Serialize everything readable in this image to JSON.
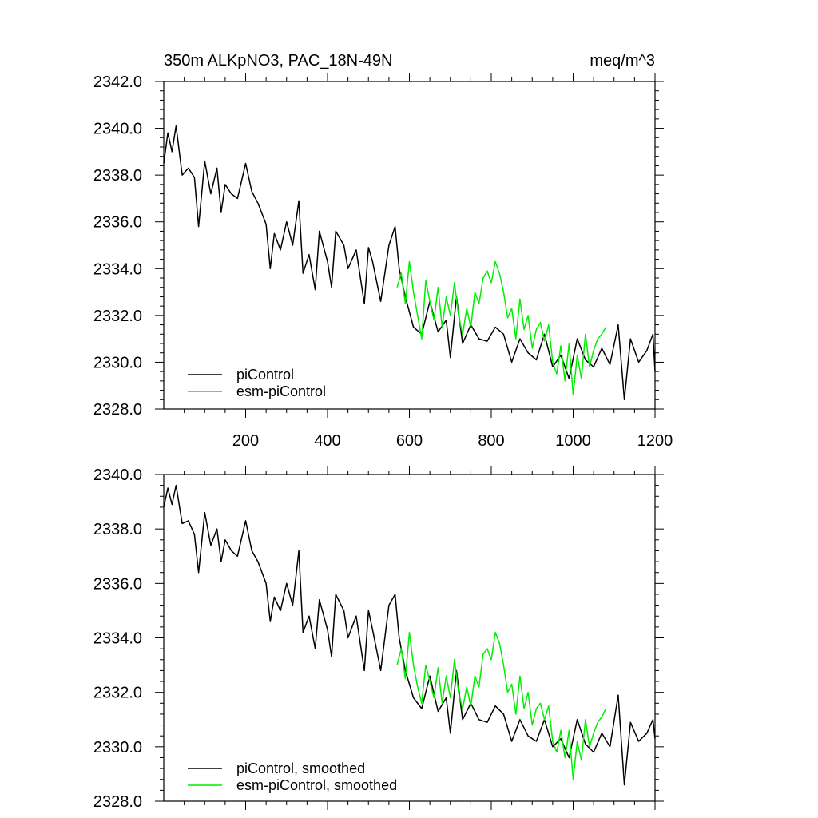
{
  "colors": {
    "piControl": "#000000",
    "esm": "#00ee00",
    "axis": "#000000"
  },
  "panel_top": {
    "title_left": "350m ALKpNO3, PAC_18N-49N",
    "title_right": "meq/m^3",
    "legend": [
      "piControl",
      "esm-piControl"
    ]
  },
  "panel_bottom": {
    "legend": [
      "piControl, smoothed",
      "esm-piControl, smoothed"
    ]
  },
  "chart_data": [
    {
      "type": "line",
      "title": "350m ALKpNO3, PAC_18N-49N",
      "units": "meq/m^3",
      "xlim": [
        0,
        1200
      ],
      "ylim": [
        2328.0,
        2342.0
      ],
      "yticks": [
        2328.0,
        2330.0,
        2332.0,
        2334.0,
        2336.0,
        2338.0,
        2340.0,
        2342.0
      ],
      "yticklabels": [
        "2328.0",
        "2330.0",
        "2332.0",
        "2334.0",
        "2336.0",
        "2338.0",
        "2340.0",
        "2342.0"
      ],
      "xticks": [
        200,
        400,
        600,
        800,
        1000,
        1200
      ],
      "xticklabels": [
        "200",
        "400",
        "600",
        "800",
        "1000",
        "1200"
      ],
      "legend": [
        "piControl",
        "esm-piControl"
      ],
      "series": [
        {
          "name": "piControl",
          "x": [
            0,
            10,
            20,
            30,
            45,
            60,
            75,
            85,
            100,
            115,
            130,
            140,
            150,
            165,
            180,
            200,
            215,
            230,
            250,
            260,
            270,
            285,
            300,
            315,
            330,
            340,
            355,
            370,
            380,
            400,
            410,
            420,
            440,
            450,
            470,
            490,
            500,
            510,
            530,
            550,
            565,
            575,
            590,
            610,
            630,
            650,
            670,
            690,
            700,
            715,
            730,
            750,
            770,
            790,
            810,
            830,
            850,
            870,
            890,
            910,
            930,
            950,
            970,
            990,
            1010,
            1030,
            1050,
            1070,
            1090,
            1110,
            1125,
            1140,
            1160,
            1180,
            1195,
            1200
          ],
          "y": [
            2338.5,
            2339.8,
            2339.0,
            2340.1,
            2338.0,
            2338.3,
            2337.9,
            2335.8,
            2338.6,
            2337.2,
            2338.3,
            2336.4,
            2337.6,
            2337.2,
            2337.0,
            2338.5,
            2337.3,
            2336.8,
            2335.9,
            2334.0,
            2335.5,
            2334.8,
            2336.0,
            2335.0,
            2336.9,
            2333.8,
            2334.6,
            2333.1,
            2335.6,
            2334.3,
            2333.2,
            2335.6,
            2335.0,
            2334.0,
            2334.8,
            2332.5,
            2334.9,
            2334.3,
            2332.6,
            2335.0,
            2335.8,
            2334.0,
            2332.8,
            2331.5,
            2331.2,
            2332.6,
            2331.3,
            2331.8,
            2330.2,
            2332.8,
            2330.8,
            2331.6,
            2331.0,
            2330.9,
            2331.5,
            2331.2,
            2330.0,
            2331.0,
            2330.4,
            2330.1,
            2331.2,
            2329.8,
            2330.3,
            2329.3,
            2331.0,
            2330.1,
            2329.8,
            2330.6,
            2329.9,
            2331.6,
            2328.4,
            2331.0,
            2330.0,
            2330.5,
            2331.2,
            2329.6
          ]
        },
        {
          "name": "esm-piControl",
          "x": [
            570,
            580,
            590,
            600,
            610,
            620,
            630,
            640,
            650,
            660,
            670,
            680,
            690,
            700,
            710,
            720,
            730,
            740,
            750,
            760,
            770,
            780,
            790,
            800,
            810,
            820,
            830,
            840,
            850,
            860,
            870,
            880,
            890,
            900,
            910,
            920,
            930,
            940,
            950,
            960,
            970,
            980,
            990,
            1000,
            1010,
            1020,
            1030,
            1040,
            1050,
            1060,
            1070,
            1080
          ],
          "y": [
            2333.2,
            2333.8,
            2332.5,
            2334.3,
            2333.0,
            2332.0,
            2331.0,
            2333.5,
            2332.6,
            2331.8,
            2333.2,
            2331.5,
            2332.8,
            2332.0,
            2333.4,
            2332.0,
            2331.2,
            2332.3,
            2331.5,
            2333.0,
            2332.5,
            2333.6,
            2333.9,
            2333.4,
            2334.3,
            2333.8,
            2333.0,
            2331.9,
            2332.3,
            2331.0,
            2332.7,
            2331.4,
            2332.0,
            2330.6,
            2331.4,
            2331.7,
            2330.9,
            2331.6,
            2330.0,
            2329.5,
            2330.7,
            2329.2,
            2330.8,
            2328.6,
            2330.3,
            2329.3,
            2331.2,
            2329.8,
            2330.5,
            2331.0,
            2331.2,
            2331.5
          ]
        }
      ]
    },
    {
      "type": "line",
      "xlim": [
        0,
        1200
      ],
      "ylim": [
        2328.0,
        2340.0
      ],
      "yticks": [
        2328.0,
        2330.0,
        2332.0,
        2334.0,
        2336.0,
        2338.0,
        2340.0
      ],
      "yticklabels": [
        "2328.0",
        "2330.0",
        "2332.0",
        "2334.0",
        "2336.0",
        "2338.0",
        "2340.0"
      ],
      "xticks": [
        200,
        400,
        600,
        800,
        1000,
        1200
      ],
      "xticklabels": [],
      "legend": [
        "piControl, smoothed",
        "esm-piControl, smoothed"
      ],
      "series": [
        {
          "name": "piControl, smoothed",
          "x": [
            0,
            10,
            20,
            30,
            45,
            60,
            75,
            85,
            100,
            115,
            130,
            140,
            150,
            165,
            180,
            200,
            215,
            230,
            250,
            260,
            270,
            285,
            300,
            315,
            330,
            340,
            355,
            370,
            380,
            400,
            410,
            420,
            440,
            450,
            470,
            490,
            500,
            510,
            530,
            550,
            565,
            575,
            590,
            610,
            630,
            650,
            670,
            690,
            700,
            715,
            730,
            750,
            770,
            790,
            810,
            830,
            850,
            870,
            890,
            910,
            930,
            950,
            970,
            990,
            1010,
            1030,
            1050,
            1070,
            1090,
            1110,
            1125,
            1140,
            1160,
            1180,
            1195,
            1200
          ],
          "y": [
            2338.8,
            2339.5,
            2338.9,
            2339.6,
            2338.2,
            2338.3,
            2337.8,
            2336.4,
            2338.6,
            2337.4,
            2338.0,
            2336.8,
            2337.6,
            2337.2,
            2337.0,
            2338.3,
            2337.2,
            2336.8,
            2336.0,
            2334.6,
            2335.5,
            2335.0,
            2336.0,
            2335.2,
            2337.2,
            2334.2,
            2334.8,
            2333.6,
            2335.4,
            2334.3,
            2333.3,
            2335.6,
            2335.0,
            2334.0,
            2334.8,
            2332.8,
            2335.0,
            2334.3,
            2332.8,
            2335.2,
            2335.6,
            2334.0,
            2332.8,
            2331.8,
            2331.4,
            2332.6,
            2331.3,
            2331.8,
            2330.5,
            2332.8,
            2331.0,
            2331.6,
            2331.0,
            2330.9,
            2331.5,
            2331.2,
            2330.2,
            2331.0,
            2330.4,
            2330.2,
            2331.0,
            2330.0,
            2330.3,
            2329.6,
            2331.0,
            2330.1,
            2329.8,
            2330.5,
            2330.0,
            2331.9,
            2328.6,
            2330.9,
            2330.2,
            2330.5,
            2331.0,
            2330.3
          ]
        },
        {
          "name": "esm-piControl, smoothed",
          "x": [
            570,
            580,
            590,
            600,
            610,
            620,
            630,
            640,
            650,
            660,
            670,
            680,
            690,
            700,
            710,
            720,
            730,
            740,
            750,
            760,
            770,
            780,
            790,
            800,
            810,
            820,
            830,
            840,
            850,
            860,
            870,
            880,
            890,
            900,
            910,
            920,
            930,
            940,
            950,
            960,
            970,
            980,
            990,
            1000,
            1010,
            1020,
            1030,
            1040,
            1050,
            1060,
            1070,
            1080
          ],
          "y": [
            2333.0,
            2333.6,
            2332.5,
            2334.2,
            2333.0,
            2332.2,
            2331.6,
            2333.0,
            2332.4,
            2331.8,
            2332.9,
            2331.6,
            2332.6,
            2331.8,
            2333.2,
            2332.0,
            2331.4,
            2332.2,
            2331.5,
            2332.6,
            2332.2,
            2333.4,
            2333.6,
            2333.2,
            2334.2,
            2333.8,
            2333.0,
            2332.0,
            2332.3,
            2331.2,
            2332.6,
            2331.4,
            2332.0,
            2330.8,
            2331.4,
            2331.6,
            2331.0,
            2331.5,
            2330.2,
            2329.8,
            2330.6,
            2329.6,
            2330.6,
            2328.8,
            2330.2,
            2329.5,
            2331.0,
            2330.0,
            2330.5,
            2330.9,
            2331.1,
            2331.4
          ]
        }
      ]
    }
  ]
}
